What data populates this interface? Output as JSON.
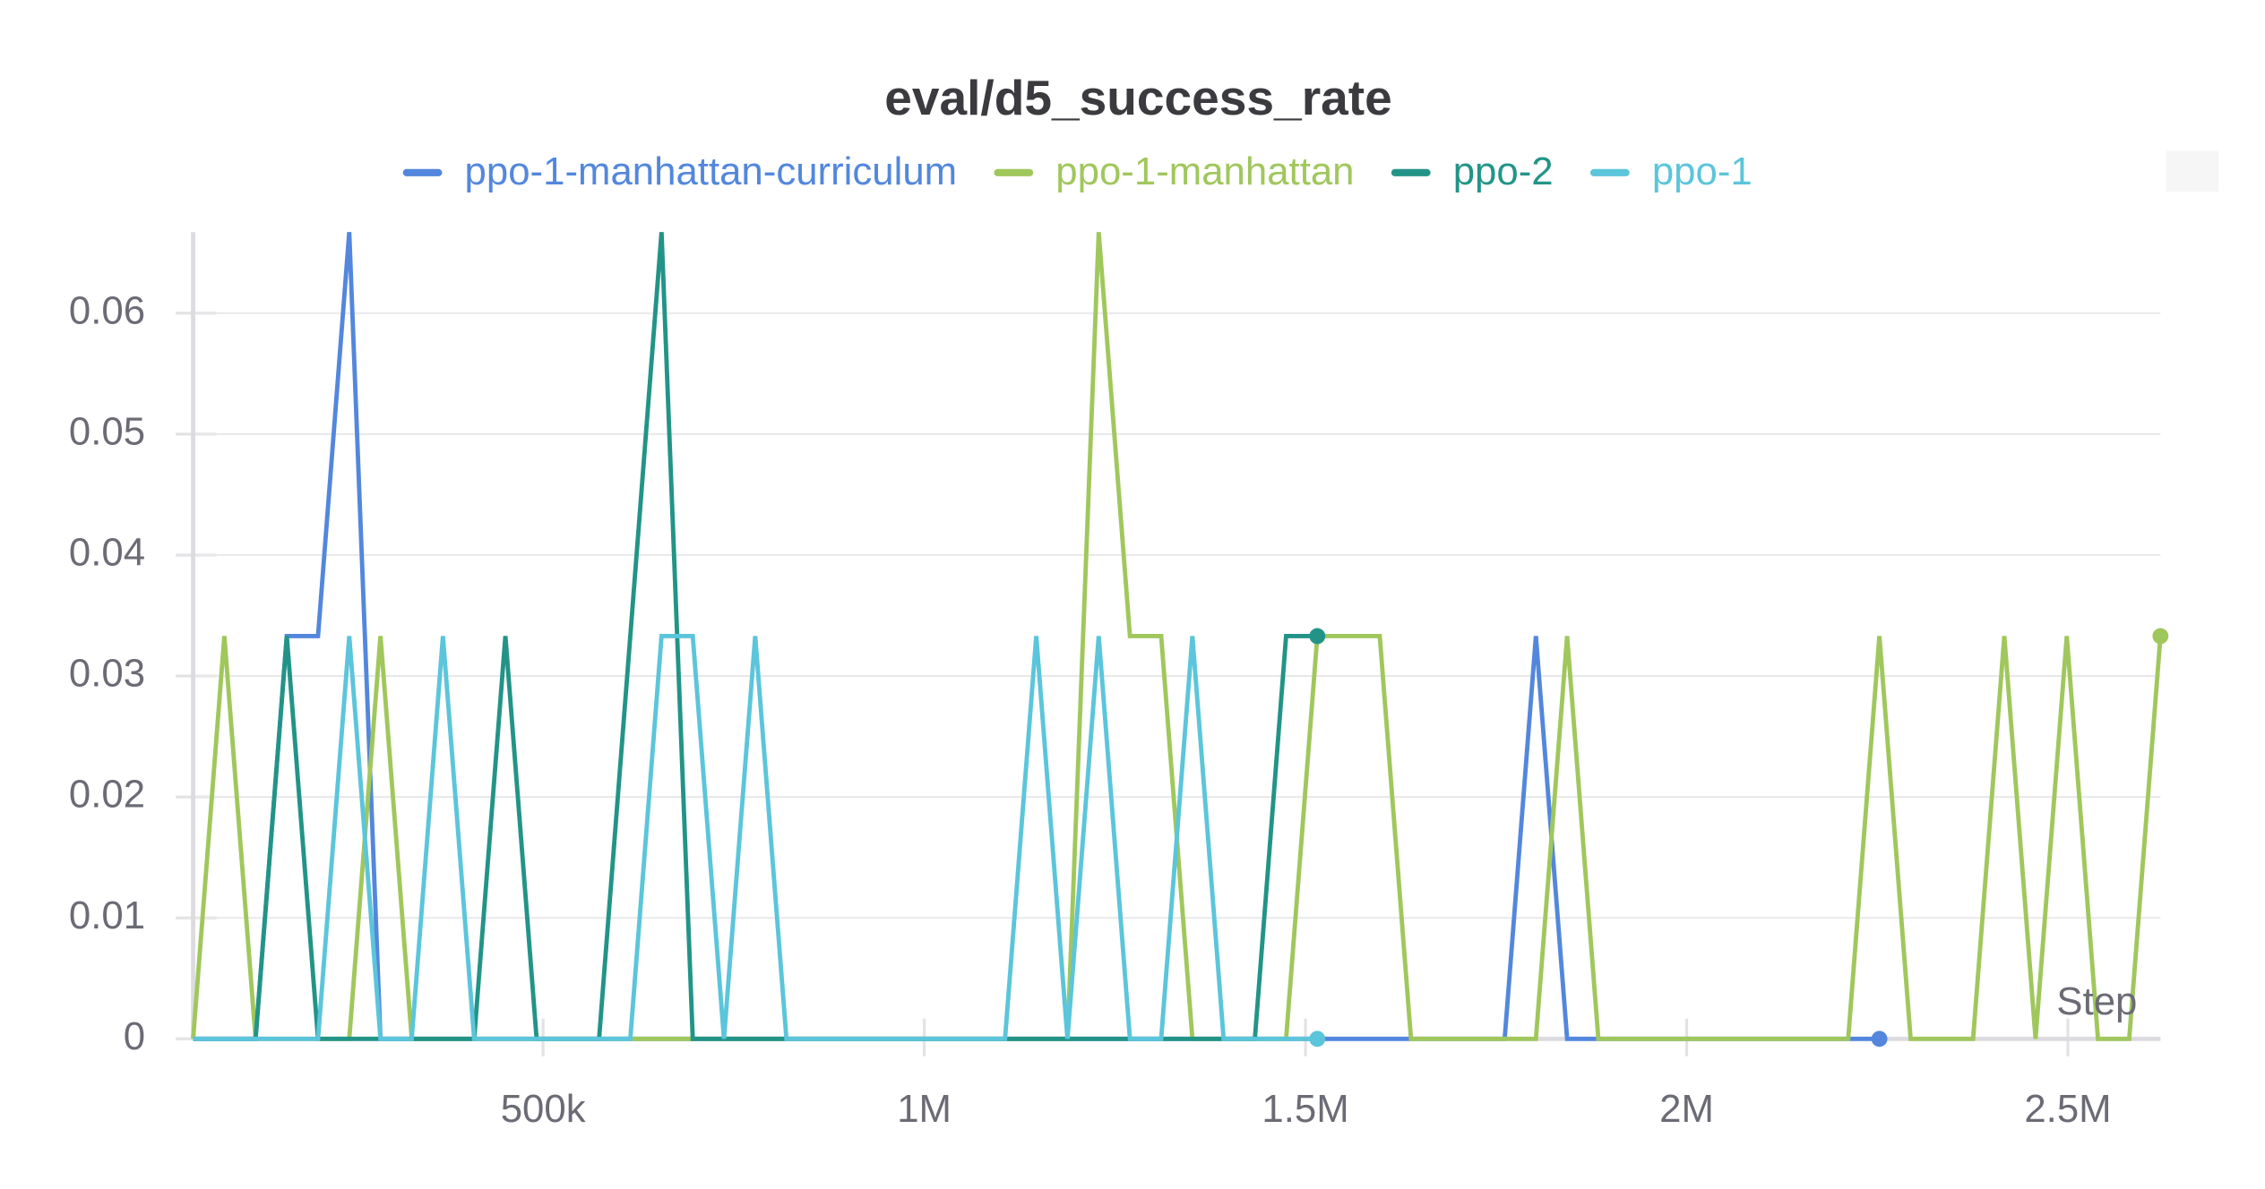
{
  "chart_data": {
    "type": "line",
    "title": "eval/d5_success_rate",
    "x_label": "Step",
    "x": [
      40960,
      81920,
      122880,
      163840,
      204800,
      245760,
      286720,
      327680,
      368640,
      409600,
      450560,
      491520,
      532480,
      573440,
      614400,
      655360,
      696320,
      737280,
      778240,
      819200,
      860160,
      901120,
      942080,
      983040,
      1024000,
      1064960,
      1105920,
      1146880,
      1187840,
      1228800,
      1269760,
      1310720,
      1351680,
      1392640,
      1433600,
      1474560,
      1515520,
      1556480,
      1597440,
      1638400,
      1679360,
      1720320,
      1761280,
      1802240,
      1843200,
      1884160,
      1925120,
      1966080,
      2007040,
      2048000,
      2088960,
      2129920,
      2170880,
      2211840,
      2252800,
      2293760,
      2334720,
      2375680,
      2416640,
      2457600,
      2498560,
      2539520,
      2580480,
      2621440
    ],
    "series": [
      {
        "name": "ppo-1-manhattan-curriculum",
        "color": "#5387dd",
        "values": [
          0,
          0,
          0,
          0.0333,
          0.0333,
          0.0667,
          0,
          0,
          0,
          0,
          0,
          0,
          0,
          0,
          0,
          0,
          0,
          0,
          0,
          0,
          0,
          0,
          0,
          0,
          0,
          0,
          0,
          0,
          0,
          0,
          0,
          0,
          0,
          0,
          0,
          0,
          0,
          0,
          0,
          0,
          0,
          0,
          0,
          0.0333,
          0,
          0,
          0,
          0,
          0,
          0,
          0,
          0,
          0,
          0,
          0,
          null,
          null,
          null,
          null,
          null,
          null,
          null,
          null,
          null
        ]
      },
      {
        "name": "ppo-1-manhattan",
        "color": "#a0c75c",
        "values": [
          0,
          0.0333,
          0,
          0,
          0,
          0,
          0.0333,
          0,
          0,
          0,
          0,
          0,
          0,
          0,
          0,
          0,
          0,
          0,
          0,
          0,
          0,
          0,
          0,
          0,
          0,
          0,
          0,
          0,
          0,
          0.0667,
          0.0333,
          0.0333,
          0,
          0,
          0,
          0,
          0.0333,
          0.0333,
          0.0333,
          0,
          0,
          0,
          0,
          0,
          0.0333,
          0,
          0,
          0,
          0,
          0,
          0,
          0,
          0,
          0,
          0.0333,
          0,
          0,
          0,
          0.0333,
          0,
          0.0333,
          0,
          0,
          0.0333
        ]
      },
      {
        "name": "ppo-2",
        "color": "#229487",
        "values": [
          0,
          0,
          0,
          0.0333,
          0,
          0,
          0,
          0,
          0,
          0,
          0.0333,
          0,
          0,
          0,
          0.0333,
          0.0667,
          0,
          0,
          0,
          0,
          0,
          0,
          0,
          0,
          0,
          0,
          0,
          0,
          0,
          0,
          0,
          0,
          0,
          0,
          0,
          0.0333,
          0.0333,
          null,
          null,
          null,
          null,
          null,
          null,
          null,
          null,
          null,
          null,
          null,
          null,
          null,
          null,
          null,
          null,
          null,
          null,
          null,
          null,
          null,
          null,
          null,
          null,
          null,
          null,
          null
        ]
      },
      {
        "name": "ppo-1",
        "color": "#5bc5db",
        "values": [
          0,
          0,
          0,
          0,
          0,
          0.0333,
          0,
          0,
          0.0333,
          0,
          0,
          0,
          0,
          0,
          0,
          0.0333,
          0.0333,
          0,
          0.0333,
          0,
          0,
          0,
          0,
          0,
          0,
          0,
          0,
          0.0333,
          0,
          0.0333,
          0,
          0,
          0.0333,
          0,
          0,
          0,
          0,
          null,
          null,
          null,
          null,
          null,
          null,
          null,
          null,
          null,
          null,
          null,
          null,
          null,
          null,
          null,
          null,
          null,
          null,
          null,
          null,
          null,
          null,
          null,
          null,
          null,
          null,
          null
        ]
      }
    ],
    "xlim": [
      40960,
      2621440
    ],
    "xticks": [
      {
        "value": 500000,
        "label": "500k"
      },
      {
        "value": 1000000,
        "label": "1M"
      },
      {
        "value": 1500000,
        "label": "1.5M"
      },
      {
        "value": 2000000,
        "label": "2M"
      },
      {
        "value": 2500000,
        "label": "2.5M"
      }
    ],
    "ylim": [
      0,
      0.0667
    ],
    "yticks": [
      0,
      0.01,
      0.02,
      0.03,
      0.04,
      0.05,
      0.06
    ],
    "grid": true
  }
}
